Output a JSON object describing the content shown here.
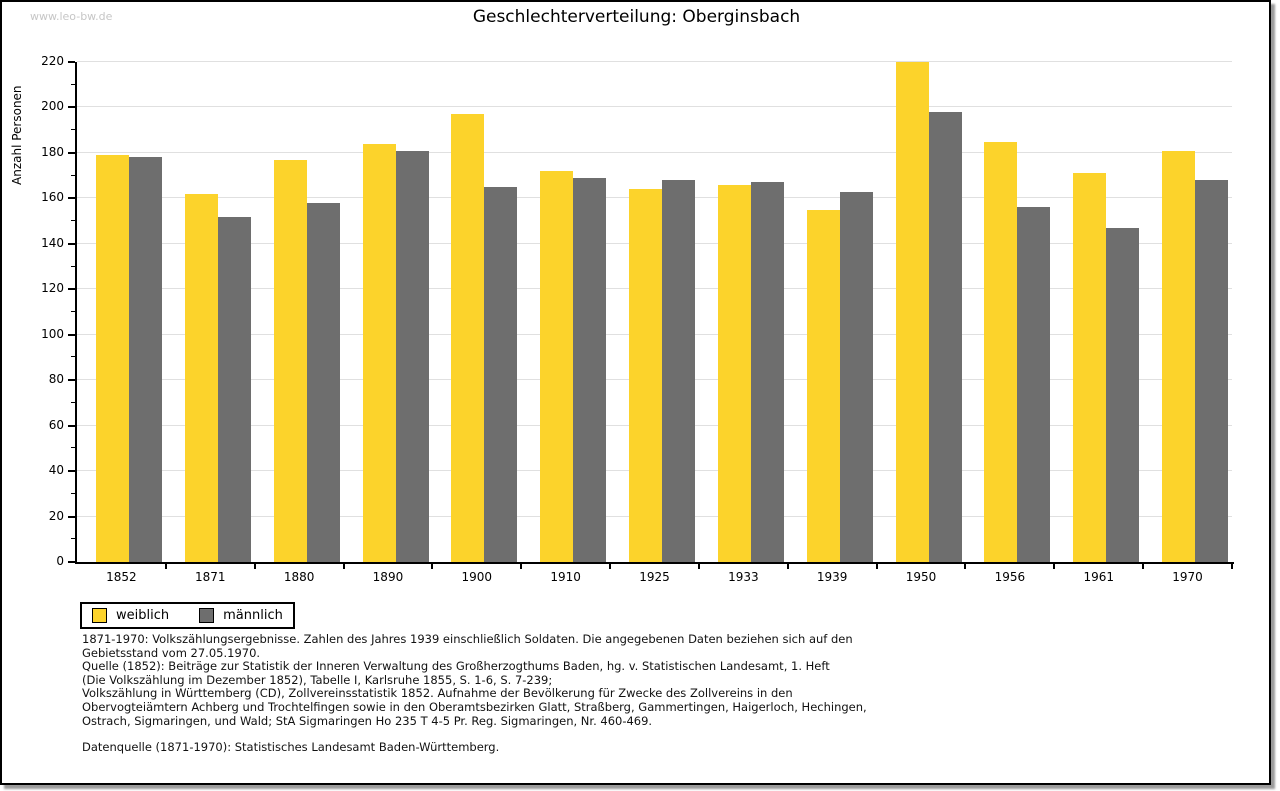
{
  "watermark": "www.leo-bw.de",
  "chart_data": {
    "type": "bar",
    "title": "Geschlechterverteilung: Oberginsbach",
    "xlabel": "",
    "ylabel": "Anzahl Personen",
    "ylim": [
      0,
      220
    ],
    "ytick_step": 20,
    "ytick_minor_step": 10,
    "grid": "horizontal",
    "legend_position": "bottom-left",
    "categories": [
      "1852",
      "1871",
      "1880",
      "1890",
      "1900",
      "1910",
      "1925",
      "1933",
      "1939",
      "1950",
      "1956",
      "1961",
      "1970"
    ],
    "series": [
      {
        "name": "weiblich",
        "color": "#fcd32b",
        "values": [
          179,
          162,
          177,
          184,
          197,
          172,
          164,
          166,
          155,
          220,
          185,
          171,
          181
        ]
      },
      {
        "name": "männlich",
        "color": "#6e6e6e",
        "values": [
          178,
          152,
          158,
          181,
          165,
          169,
          168,
          167,
          163,
          198,
          156,
          147,
          168
        ]
      }
    ]
  },
  "colors": {
    "gridline": "#e0e0e0",
    "axis": "#000000",
    "watermark": "#c6c6c6"
  },
  "footnotes": {
    "lines": [
      "1871-1970: Volkszählungsergebnisse. Zahlen des Jahres 1939 einschließlich Soldaten. Die angegebenen Daten beziehen sich auf den",
      "Gebietsstand vom 27.05.1970.",
      "Quelle (1852): Beiträge zur Statistik der Inneren Verwaltung des Großherzogthums Baden, hg. v. Statistischen Landesamt, 1. Heft",
      "(Die Volkszählung im Dezember 1852), Tabelle I, Karlsruhe 1855, S. 1-6, S. 7-239;",
      "Volkszählung in Württemberg (CD), Zollvereinsstatistik 1852. Aufnahme der Bevölkerung für Zwecke des Zollvereins in den",
      "Obervogteiämtern Achberg und Trochtelfingen sowie in den Oberamtsbezirken Glatt, Straßberg, Gammertingen, Haigerloch, Hechingen,",
      "Ostrach, Sigmaringen, und Wald; StA Sigmaringen Ho 235 T 4-5 Pr. Reg. Sigmaringen, Nr. 460-469.",
      "Datenquelle (1871-1970): Statistisches Landesamt Baden-Württemberg."
    ]
  }
}
